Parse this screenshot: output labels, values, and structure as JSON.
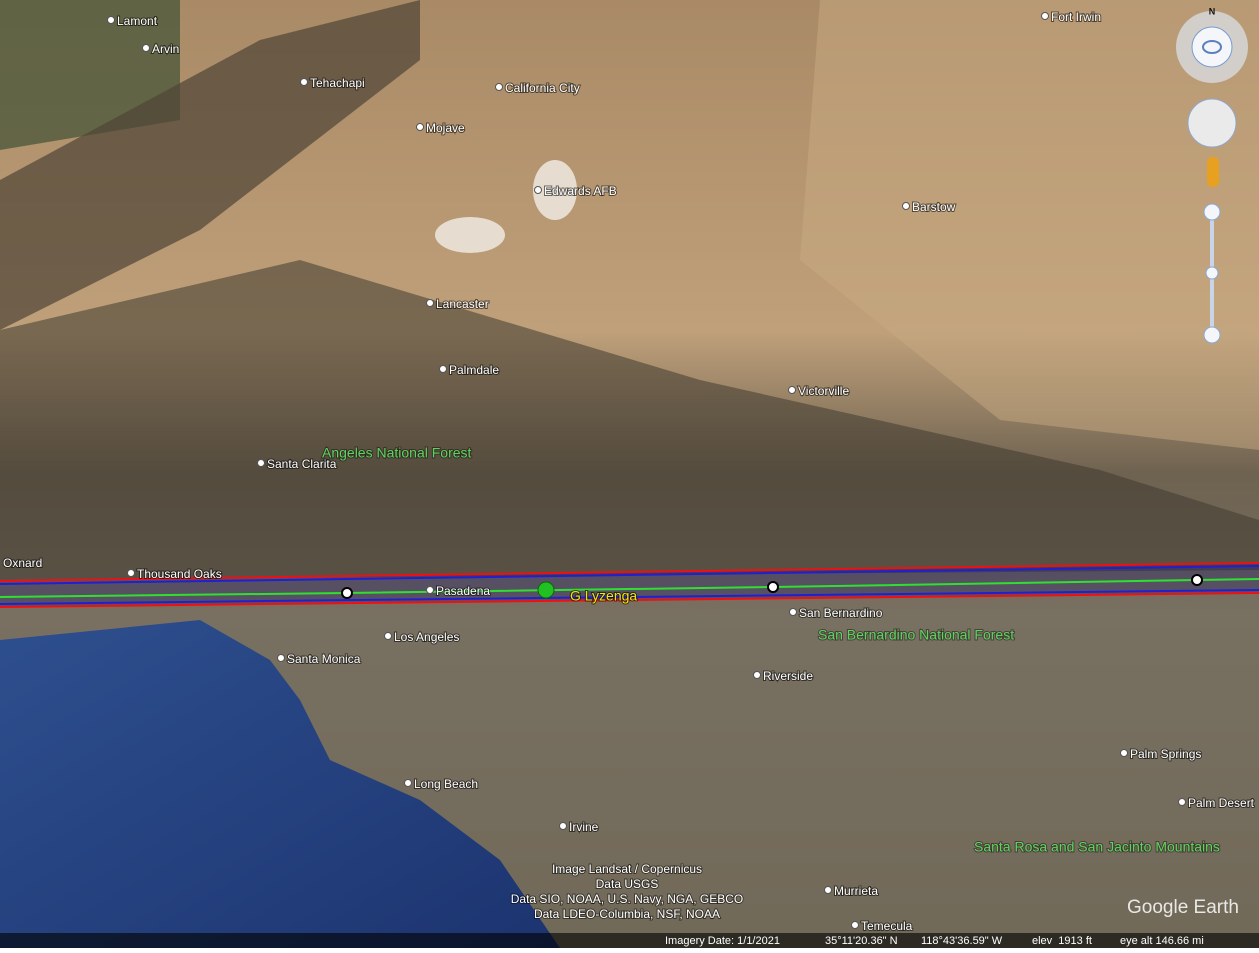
{
  "map": {
    "places": [
      "Lamont",
      "Arvin",
      "Tehachapi",
      "California City",
      "Mojave",
      "Edwards AFB",
      "Barstow",
      "Fort Irwin",
      "Lancaster",
      "Palmdale",
      "Victorville",
      "Santa Clarita",
      "Oxnard",
      "Thousand Oaks",
      "Pasadena",
      "San Bernardino",
      "Los Angeles",
      "Santa Monica",
      "Riverside",
      "Palm Springs",
      "Long Beach",
      "Palm Desert",
      "Irvine",
      "Murrieta",
      "Temecula"
    ],
    "areas": [
      "Angeles National Forest",
      "San Bernardino National Forest",
      "Santa Rosa and San Jacinto Mountains"
    ],
    "placemark": "G Lyzenga",
    "compass": "N",
    "attribution": [
      "Image Landsat / Copernicus",
      "Data USGS",
      "Data SIO, NOAA, U.S. Navy, NGA, GEBCO",
      "Data LDEO-Columbia, NSF, NOAA"
    ],
    "logo": "Google Earth",
    "status": {
      "imagery_date": "Imagery Date: 1/1/2021",
      "lat": "35°11'20.36\" N",
      "lon": "118°43'36.59\" W",
      "elev": "elev  1913 ft",
      "eye_alt": "eye alt 146.66 mi"
    }
  }
}
